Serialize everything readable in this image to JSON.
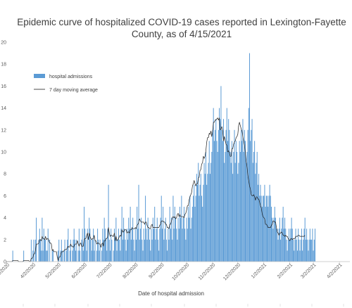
{
  "chart_data": {
    "type": "bar",
    "title_lines": [
      "Epidemic curve of hospitalized COVID-19 cases reported in Lexington-Fayette",
      "County, as of 4/15/2021"
    ],
    "xlabel": "Date of hospital admission",
    "ylabel": "",
    "ylim": [
      0,
      20
    ],
    "y_ticks": [
      0,
      2,
      4,
      6,
      8,
      10,
      12,
      14,
      16,
      18,
      20
    ],
    "grid": false,
    "legend_position": "left",
    "x_start": "2020-03-01",
    "x_end": "2021-04-14",
    "x_tick_labels": [
      "3/2/2020",
      "4/2/2020",
      "5/2/2020",
      "6/2/2020",
      "7/2/2020",
      "8/2/2020",
      "9/2/2020",
      "10/2/2020",
      "11/2/2020",
      "12/2/2020",
      "1/2/2021",
      "2/2/2021",
      "3/2/2021",
      "4/2/2021"
    ],
    "x_tick_dates": [
      "2020-03-02",
      "2020-04-02",
      "2020-05-02",
      "2020-06-02",
      "2020-07-02",
      "2020-08-02",
      "2020-09-02",
      "2020-10-02",
      "2020-11-02",
      "2020-12-02",
      "2021-01-02",
      "2021-02-02",
      "2021-03-02",
      "2021-04-02"
    ],
    "bar_color": "#5b9bd5",
    "line_color": "#1f1f1f",
    "series": [
      {
        "name": "hospital admissions",
        "kind": "bar",
        "values": [
          0,
          0,
          0,
          0,
          0,
          0,
          0,
          0,
          1,
          0,
          0,
          0,
          0,
          0,
          0,
          0,
          0,
          0,
          0,
          0,
          0,
          1,
          0,
          0,
          0,
          0,
          0,
          0,
          0,
          0,
          2,
          0,
          1,
          2,
          0,
          2,
          4,
          0,
          0,
          2,
          3,
          2,
          1,
          4,
          1,
          3,
          2,
          2,
          1,
          1,
          3,
          0,
          2,
          0,
          0,
          1,
          1,
          0,
          0,
          0,
          0,
          0,
          1,
          2,
          0,
          1,
          2,
          1,
          0,
          1,
          2,
          0,
          1,
          2,
          3,
          0,
          1,
          2,
          0,
          1,
          2,
          3,
          2,
          1,
          2,
          0,
          1,
          3,
          1,
          0,
          2,
          3,
          1,
          5,
          3,
          2,
          1,
          3,
          0,
          4,
          3,
          2,
          1,
          2,
          3,
          1,
          2,
          0,
          1,
          3,
          2,
          1,
          2,
          0,
          1,
          3,
          2,
          4,
          3,
          2,
          1,
          3,
          7,
          2,
          1,
          3,
          2,
          0,
          1,
          3,
          2,
          4,
          1,
          2,
          3,
          2,
          1,
          3,
          5,
          2,
          4,
          3,
          2,
          1,
          3,
          2,
          4,
          3,
          5,
          2,
          3,
          4,
          2,
          1,
          3,
          2,
          5,
          3,
          7,
          2,
          3,
          4,
          2,
          1,
          3,
          2,
          6,
          3,
          2,
          4,
          3,
          2,
          1,
          3,
          2,
          4,
          3,
          5,
          2,
          3,
          4,
          2,
          1,
          3,
          4,
          6,
          3,
          5,
          2,
          3,
          4,
          2,
          1,
          3,
          2,
          5,
          3,
          4,
          2,
          6,
          3,
          5,
          4,
          3,
          2,
          4,
          3,
          5,
          4,
          6,
          3,
          4,
          5,
          3,
          2,
          4,
          3,
          5,
          4,
          6,
          3,
          4,
          5,
          6,
          7,
          5,
          6,
          8,
          7,
          9,
          6,
          7,
          8,
          6,
          5,
          7,
          9,
          8,
          10,
          7,
          8,
          9,
          11,
          8,
          9,
          10,
          12,
          14,
          11,
          12,
          13,
          11,
          10,
          12,
          14,
          13,
          16,
          12,
          11,
          13,
          9,
          10,
          12,
          14,
          11,
          13,
          12,
          10,
          9,
          11,
          8,
          10,
          12,
          9,
          11,
          10,
          8,
          9,
          11,
          10,
          12,
          11,
          13,
          10,
          12,
          11,
          9,
          10,
          12,
          14,
          19,
          11,
          12,
          13,
          9,
          10,
          11,
          8,
          9,
          10,
          7,
          8,
          6,
          7,
          6,
          5,
          6,
          6,
          7,
          5,
          6,
          6,
          5,
          6,
          7,
          6,
          5,
          4,
          3,
          4,
          5,
          4,
          3,
          3,
          2,
          3,
          4,
          2,
          3,
          4,
          5,
          3,
          4,
          3,
          2,
          1,
          2,
          3,
          2,
          3,
          4,
          3,
          2,
          1,
          2,
          3,
          2,
          1,
          3,
          2,
          1,
          2,
          3,
          1,
          2,
          3,
          4,
          2,
          3,
          2,
          1,
          2,
          3,
          2,
          2,
          3,
          1,
          2,
          3
        ]
      },
      {
        "name": "7 day moving average",
        "kind": "line",
        "values": [
          0,
          0,
          0,
          0,
          0,
          0,
          0,
          0,
          0.1,
          0.1,
          0.1,
          0.1,
          0.1,
          0.1,
          0.1,
          0,
          0,
          0,
          0,
          0,
          0,
          0.1,
          0.1,
          0.1,
          0.1,
          0.1,
          0.1,
          0.1,
          0,
          0,
          0.3,
          0.3,
          0.4,
          0.7,
          0.7,
          1,
          1.6,
          1.6,
          1.6,
          1.7,
          2,
          2,
          1.9,
          2.3,
          2.1,
          2.1,
          2,
          2.3,
          2,
          2.1,
          2.1,
          1.9,
          1.7,
          1.7,
          1.6,
          1,
          1.1,
          0.9,
          0.9,
          0.9,
          0.9,
          0.4,
          0.1,
          0.4,
          0.4,
          0.6,
          0.9,
          0.9,
          0.9,
          1,
          1.1,
          1.1,
          1.1,
          1.3,
          1.4,
          1.3,
          1.4,
          1.6,
          1.4,
          1.4,
          1.3,
          1.4,
          1.6,
          1.6,
          1.6,
          1.9,
          1.6,
          1.4,
          1.6,
          1.7,
          1.4,
          1.4,
          1.4,
          2,
          2.1,
          2.1,
          2.4,
          2.6,
          2,
          2.6,
          2.3,
          2.1,
          2,
          2.1,
          2.1,
          2.4,
          1.9,
          1.9,
          1.6,
          1.7,
          1.7,
          1.6,
          1.6,
          1.3,
          1.6,
          1.7,
          1.4,
          1.9,
          1.9,
          2.1,
          2.1,
          2.3,
          3.1,
          2.6,
          2.3,
          2.4,
          2.4,
          2.3,
          2.3,
          2.6,
          1.9,
          2.3,
          1.9,
          2,
          2.1,
          2.3,
          2.4,
          2.3,
          2.9,
          2.7,
          2.7,
          2.9,
          2.9,
          2.9,
          2.6,
          2.7,
          2.7,
          2.6,
          2.9,
          2.9,
          3.1,
          3,
          3,
          3,
          3.1,
          3,
          3.3,
          3.4,
          3.6,
          3.9,
          3.7,
          3.6,
          3.6,
          3.6,
          3.6,
          3.4,
          3.6,
          3.6,
          3.3,
          3.1,
          3.1,
          3,
          3,
          3.3,
          3.4,
          3.1,
          3.1,
          3.1,
          3.1,
          3.1,
          3.1,
          3.1,
          3.1,
          3.3,
          3.4,
          3.7,
          3.7,
          3.7,
          3.6,
          3.6,
          3.4,
          3.4,
          3.1,
          3.1,
          3,
          3.4,
          3.4,
          3.7,
          4,
          4.1,
          4,
          4.1,
          3.9,
          4,
          4.3,
          4.4,
          4.1,
          4.3,
          4.1,
          4.1,
          4.1,
          4.1,
          4,
          4.3,
          4.4,
          4.7,
          5.1,
          5.1,
          5.6,
          5.9,
          6.1,
          6.3,
          6.9,
          7.1,
          7.4,
          7.1,
          6.9,
          7.1,
          7.1,
          7.6,
          7.7,
          8.3,
          8.4,
          8.9,
          9,
          9.6,
          9.4,
          9.6,
          10.1,
          10.9,
          11.3,
          11.3,
          11.7,
          11.6,
          11.9,
          11.4,
          11.9,
          12.7,
          12.7,
          12.9,
          12.9,
          13,
          13.1,
          12.9,
          13.1,
          12,
          12.1,
          12.3,
          11.9,
          11,
          11.4,
          11,
          10.7,
          10.6,
          10,
          10.1,
          9.9,
          9.6,
          9.6,
          10.3,
          10.3,
          10.7,
          10.9,
          11,
          11.3,
          11.4,
          11.6,
          12.4,
          12.7,
          12.4,
          12.1,
          11.9,
          11.4,
          11,
          10.6,
          9.9,
          9.1,
          8.6,
          7.9,
          7.4,
          6.9,
          6.6,
          6.1,
          6,
          6,
          6.1,
          5.9,
          5.6,
          5.9,
          5.9,
          5.7,
          5.7,
          5.4,
          5.1,
          4.9,
          4.4,
          4.1,
          4,
          3.9,
          3.4,
          3.4,
          3.3,
          3.1,
          3.1,
          3.1,
          3.1,
          3.3,
          3.4,
          3.7,
          3.7,
          3.6,
          3.6,
          3.1,
          2.7,
          2.6,
          2.4,
          2.6,
          2.6,
          2.7,
          2.6,
          2.4,
          2.4,
          2.3,
          2.4,
          2.3,
          2.3,
          2.1,
          2,
          1.9,
          2.1,
          2.1,
          2,
          2.1,
          2.1,
          2.1,
          2.3,
          2.3,
          2.3,
          2.4,
          2.4,
          2.3,
          2.3,
          2.3,
          2.3,
          2.3,
          2.3,
          2.4
        ]
      }
    ]
  }
}
